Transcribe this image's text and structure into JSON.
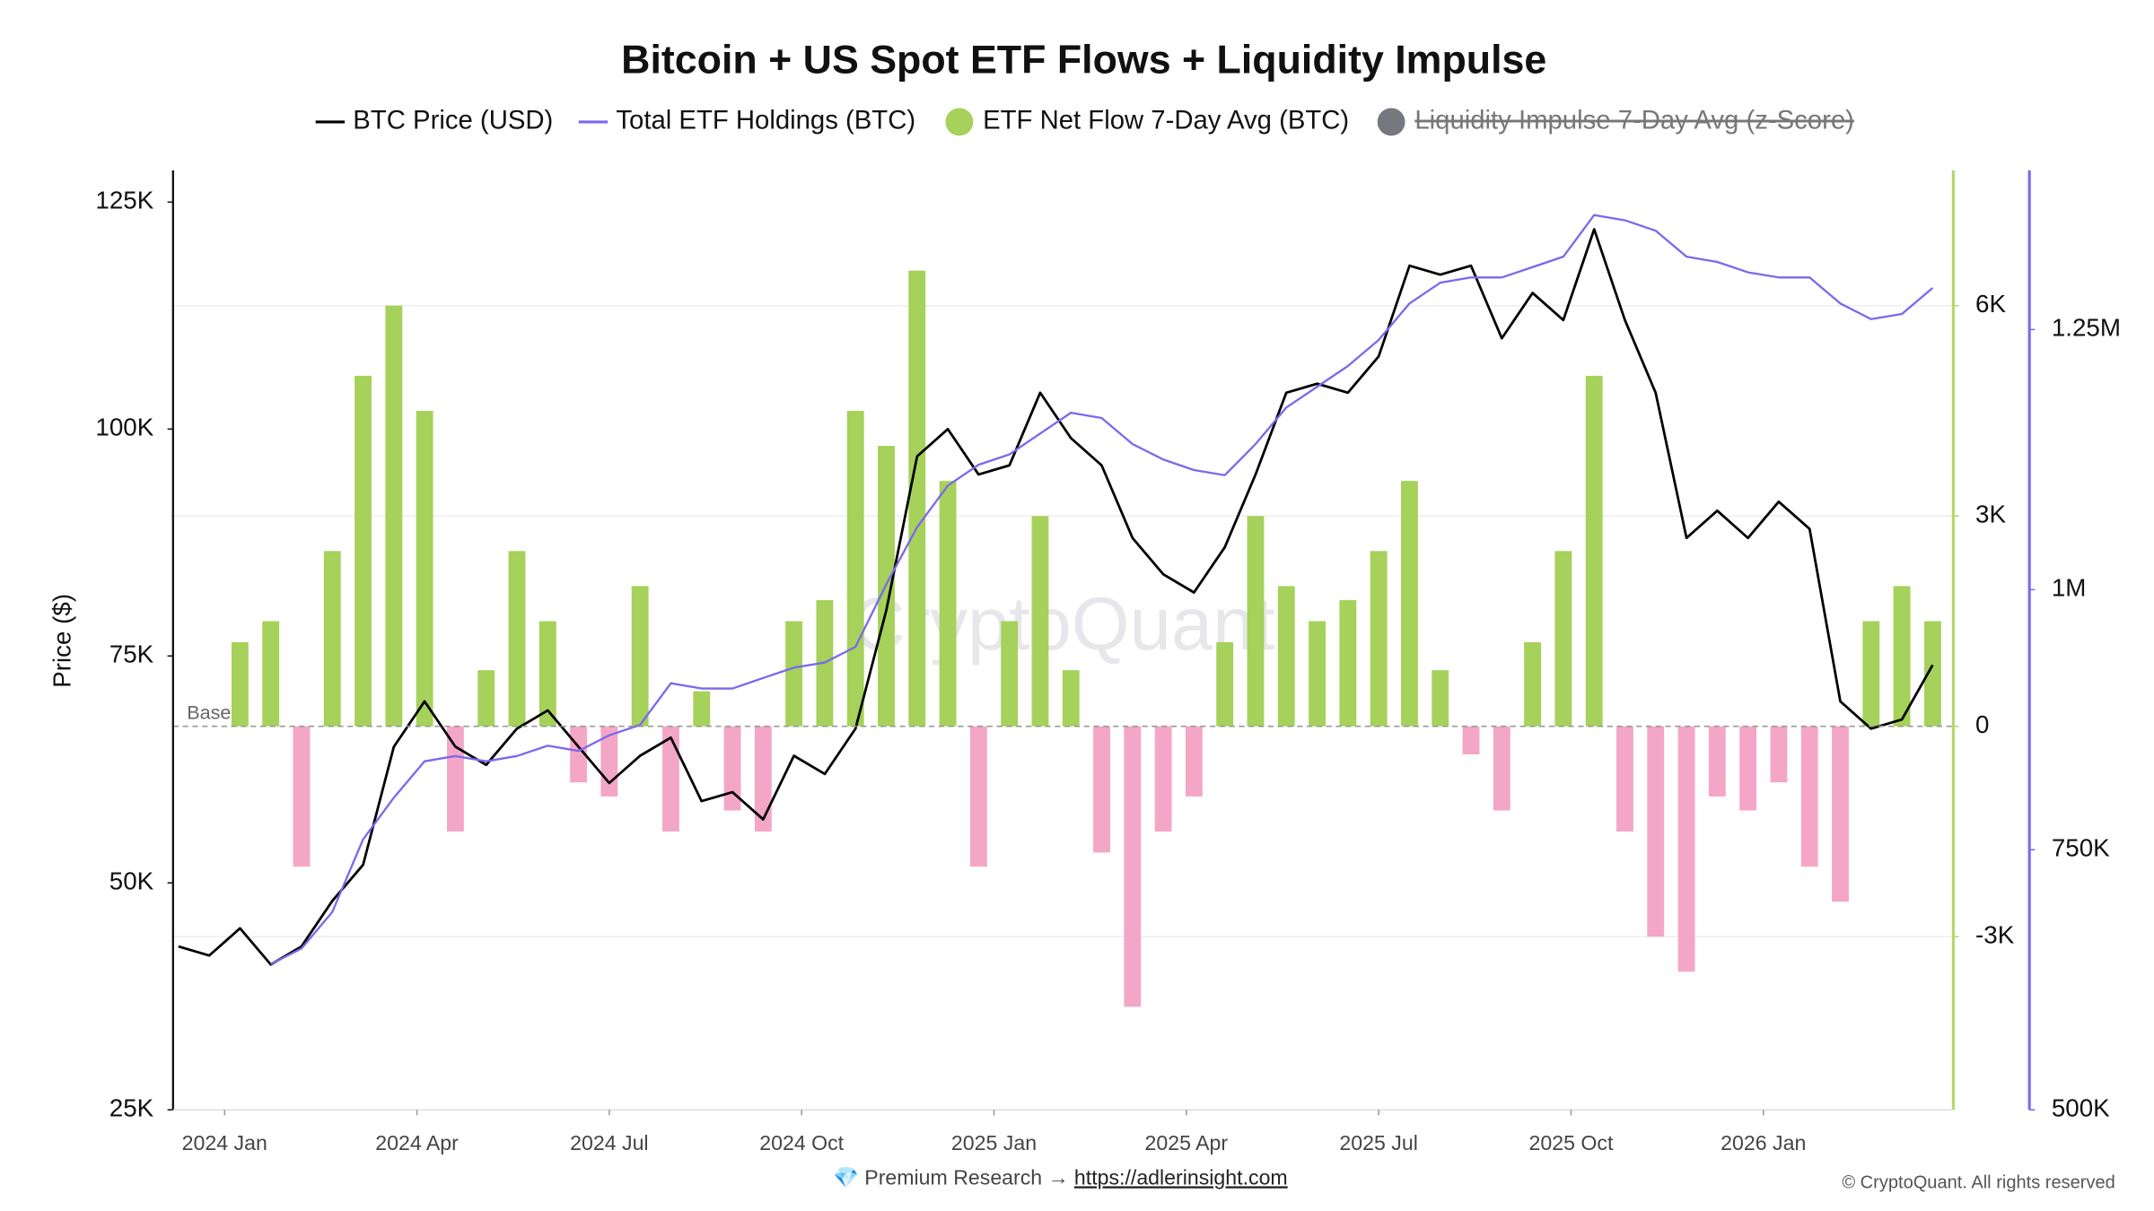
{
  "chart_data": {
    "type": "combo",
    "title": "Bitcoin + US Spot ETF Flows + Liquidity Impulse",
    "x": [
      2023.94,
      2023.98,
      2024.02,
      2024.06,
      2024.1,
      2024.14,
      2024.18,
      2024.22,
      2024.26,
      2024.3,
      2024.34,
      2024.38,
      2024.42,
      2024.46,
      2024.5,
      2024.54,
      2024.58,
      2024.62,
      2024.66,
      2024.7,
      2024.74,
      2024.78,
      2024.82,
      2024.86,
      2024.9,
      2024.94,
      2024.98,
      2025.02,
      2025.06,
      2025.1,
      2025.14,
      2025.18,
      2025.22,
      2025.26,
      2025.3,
      2025.34,
      2025.38,
      2025.42,
      2025.46,
      2025.5,
      2025.54,
      2025.58,
      2025.62,
      2025.66,
      2025.7,
      2025.74,
      2025.78,
      2025.82,
      2025.86,
      2025.9,
      2025.94,
      2025.98,
      2026.02,
      2026.06,
      2026.1,
      2026.14,
      2026.18,
      2026.22
    ],
    "xlim": [
      2023.933,
      2026.245
    ],
    "xticks": [
      {
        "value": 2024.0,
        "label": "2024 Jan"
      },
      {
        "value": 2024.25,
        "label": "2024 Apr"
      },
      {
        "value": 2024.5,
        "label": "2024 Jul"
      },
      {
        "value": 2024.75,
        "label": "2024 Oct"
      },
      {
        "value": 2025.0,
        "label": "2025 Jan"
      },
      {
        "value": 2025.25,
        "label": "2025 Apr"
      },
      {
        "value": 2025.5,
        "label": "2025 Jul"
      },
      {
        "value": 2025.75,
        "label": "2025 Oct"
      },
      {
        "value": 2026.0,
        "label": "2026 Jan"
      }
    ],
    "ylabel": "Price ($)",
    "ylim": [
      25000,
      128500
    ],
    "yticks": [
      {
        "value": 25000,
        "label": "25K"
      },
      {
        "value": 50000,
        "label": "50K"
      },
      {
        "value": 75000,
        "label": "75K"
      },
      {
        "value": 100000,
        "label": "100K"
      },
      {
        "value": 125000,
        "label": "125K"
      }
    ],
    "y2lim": [
      -5470,
      7930
    ],
    "y2ticks": [
      {
        "value": -3000,
        "label": "-3K"
      },
      0,
      {
        "value": 3000,
        "label": "3K"
      },
      {
        "value": 6000,
        "label": "6K"
      }
    ],
    "y2color": "#b5d66a",
    "y3lim": [
      500000,
      1403000
    ],
    "y3ticks": [
      {
        "value": 500000,
        "label": "500K"
      },
      {
        "value": 750000,
        "label": "750K"
      },
      {
        "value": 1000000,
        "label": "1M"
      },
      {
        "value": 1250000,
        "label": "1.25M"
      }
    ],
    "y3color": "#7b68ee",
    "grid": true,
    "base_label": "Base",
    "watermark": "CryptoQuant",
    "footer_note": "💎 Premium Research →",
    "footer_link": "https://adlerinsight.com",
    "copyright": "© CryptoQuant. All rights reserved",
    "series": [
      {
        "name": "BTC Price (USD)",
        "type": "line",
        "color": "#000000",
        "values": [
          43000,
          42000,
          45000,
          41000,
          43000,
          48000,
          52000,
          65000,
          70000,
          65000,
          63000,
          67000,
          69000,
          65000,
          61000,
          64000,
          66000,
          59000,
          60000,
          57000,
          64000,
          62000,
          67000,
          80000,
          97000,
          100000,
          95000,
          96000,
          104000,
          99000,
          96000,
          88000,
          84000,
          82000,
          87000,
          95000,
          104000,
          105000,
          104000,
          108000,
          118000,
          117000,
          118000,
          110000,
          115000,
          112000,
          122000,
          112000,
          104000,
          88000,
          91000,
          88000,
          92000,
          89000,
          70000,
          67000,
          68000,
          74000
        ]
      },
      {
        "name": "Total ETF Holdings (BTC)",
        "type": "line",
        "axis": "y3",
        "color": "#7b68ee",
        "values": [
          null,
          null,
          null,
          640000,
          655000,
          690000,
          760000,
          800000,
          835000,
          840000,
          835000,
          840000,
          850000,
          845000,
          860000,
          870000,
          910000,
          905000,
          905000,
          915000,
          925000,
          930000,
          945000,
          1005000,
          1060000,
          1100000,
          1120000,
          1130000,
          1150000,
          1170000,
          1165000,
          1140000,
          1125000,
          1115000,
          1110000,
          1140000,
          1175000,
          1195000,
          1215000,
          1240000,
          1275000,
          1295000,
          1300000,
          1300000,
          1310000,
          1320000,
          1360000,
          1355000,
          1345000,
          1320000,
          1315000,
          1305000,
          1300000,
          1300000,
          1275000,
          1260000,
          1265000,
          1290000
        ]
      },
      {
        "name": "ETF Net Flow 7-Day Avg (BTC)",
        "type": "bar",
        "axis": "y2",
        "color": "#a6d15a",
        "negative_color": "#f4a6c6",
        "values": [
          null,
          null,
          1200,
          1500,
          -2000,
          2500,
          5000,
          6000,
          4500,
          -1500,
          800,
          2500,
          1500,
          -800,
          -1000,
          2000,
          -1500,
          500,
          -1200,
          -1500,
          1500,
          1800,
          4500,
          4000,
          6500,
          3500,
          -2000,
          1500,
          3000,
          800,
          -1800,
          -4000,
          -1500,
          -1000,
          1200,
          3000,
          2000,
          1500,
          1800,
          2500,
          3500,
          800,
          -400,
          -1200,
          1200,
          2500,
          5000,
          -1500,
          -3000,
          -3500,
          -1000,
          -1200,
          -800,
          -2000,
          -2500,
          1500,
          2000,
          1500
        ]
      },
      {
        "name": "Liquidity Impulse 7-Day Avg (z-Score)",
        "type": "line",
        "color": "#777780",
        "hidden": true
      }
    ]
  }
}
